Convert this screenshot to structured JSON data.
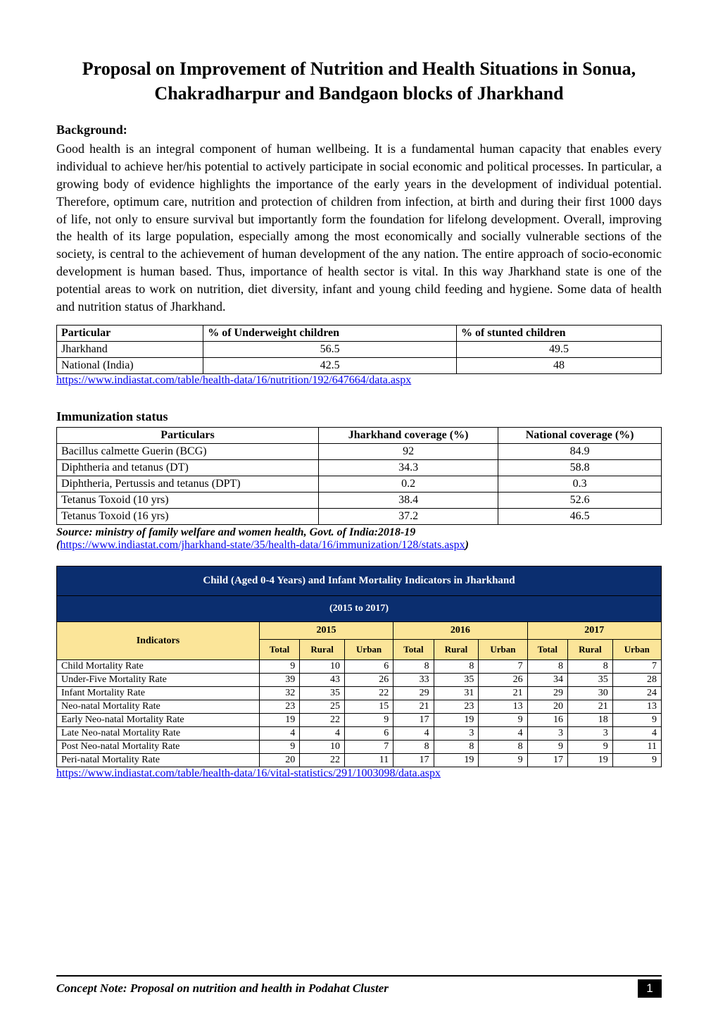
{
  "title": "Proposal on Improvement of Nutrition and Health Situations in Sonua, Chakradharpur and Bandgaon blocks of Jharkhand",
  "background_heading": "Background:",
  "background_text": "Good health is an integral component of human wellbeing.  It is a fundamental human capacity that enables every individual to achieve her/his potential to actively participate in social economic and political processes.  In particular, a growing body of evidence highlights the importance of the early years in the development of individual potential.  Therefore, optimum care, nutrition and protection of children from infection, at birth and during their first 1000 days of life, not only to ensure survival but importantly form the foundation for lifelong development.  Overall, improving the health of its large population, especially among the most economically and socially vulnerable sections of the society, is central to the achievement of human development of the any nation.  The entire approach of socio-economic development is human based.  Thus, importance of health sector is vital.  In this way Jharkhand state is one of the potential areas to work on nutrition, diet diversity, infant and young child feeding and hygiene.  Some data of health and nutrition status of Jharkhand.",
  "nutrition_table": {
    "type": "table",
    "columns": [
      "Particular",
      "% of Underweight children",
      "% of stunted children"
    ],
    "col_align": [
      "left",
      "center",
      "center"
    ],
    "rows": [
      [
        "Jharkhand",
        "56.5",
        "49.5"
      ],
      [
        "National (India)",
        "42.5",
        "48"
      ]
    ],
    "border_color": "#000000",
    "header_bold": true,
    "font_size": 16
  },
  "nutrition_link": "https://www.indiastat.com/table/health-data/16/nutrition/192/647664/data.aspx",
  "immunization_heading": "Immunization status",
  "immunization_table": {
    "type": "table",
    "columns": [
      "Particulars",
      "Jharkhand coverage (%)",
      "National coverage (%)"
    ],
    "col_align": [
      "left",
      "center",
      "center"
    ],
    "rows": [
      [
        "Bacillus calmette Guerin (BCG)",
        "92",
        "84.9"
      ],
      [
        "Diphtheria and tetanus (DT)",
        "34.3",
        "58.8"
      ],
      [
        "Diphtheria, Pertussis and tetanus (DPT)",
        "0.2",
        "0.3"
      ],
      [
        "Tetanus Toxoid (10 yrs)",
        "38.4",
        "52.6"
      ],
      [
        "Tetanus Toxoid (16 yrs)",
        "37.2",
        "46.5"
      ]
    ],
    "border_color": "#000000",
    "header_bold": true,
    "font_size": 16
  },
  "immunization_source": "Source: ministry of family welfare and women health, Govt. of India:2018-19",
  "immunization_link_prefix": "(",
  "immunization_link": "https://www.indiastat.com/jharkhand-state/35/health-data/16/immunization/128/stats.aspx",
  "immunization_link_suffix": ")",
  "mortality_table": {
    "type": "table",
    "title": "Child (Aged 0-4 Years) and Infant Mortality Indicators in Jharkhand",
    "subtitle": "(2015 to 2017)",
    "header_bg": "#0b2e6f",
    "header_fg": "#ffffff",
    "subheader_bg": "#fbe599",
    "subheader_fg": "#000000",
    "cell_bg": "#ffffff",
    "years": [
      "2015",
      "2016",
      "2017"
    ],
    "sub_columns": [
      "Total",
      "Rural",
      "Urban"
    ],
    "indicator_header": "Indicators",
    "rows": [
      {
        "label": "Child Mortality Rate",
        "v": [
          "9",
          "10",
          "6",
          "8",
          "8",
          "7",
          "8",
          "8",
          "7"
        ]
      },
      {
        "label": "Under-Five Mortality Rate",
        "v": [
          "39",
          "43",
          "26",
          "33",
          "35",
          "26",
          "34",
          "35",
          "28"
        ]
      },
      {
        "label": "Infant Mortality Rate",
        "v": [
          "32",
          "35",
          "22",
          "29",
          "31",
          "21",
          "29",
          "30",
          "24"
        ]
      },
      {
        "label": "Neo-natal Mortality Rate",
        "v": [
          "23",
          "25",
          "15",
          "21",
          "23",
          "13",
          "20",
          "21",
          "13"
        ]
      },
      {
        "label": "Early Neo-natal Mortality Rate",
        "v": [
          "19",
          "22",
          "9",
          "17",
          "19",
          "9",
          "16",
          "18",
          "9"
        ]
      },
      {
        "label": "Late Neo-natal Mortality Rate",
        "v": [
          "4",
          "4",
          "6",
          "4",
          "3",
          "4",
          "3",
          "3",
          "4"
        ]
      },
      {
        "label": "Post Neo-natal Mortality Rate",
        "v": [
          "9",
          "10",
          "7",
          "8",
          "8",
          "8",
          "9",
          "9",
          "11"
        ]
      },
      {
        "label": "Peri-natal Mortality Rate",
        "v": [
          "20",
          "22",
          "11",
          "17",
          "19",
          "9",
          "17",
          "19",
          "9"
        ]
      }
    ],
    "font_size": 14
  },
  "mortality_link": "https://www.indiastat.com/table/health-data/16/vital-statistics/291/1003098/data.aspx",
  "footer_text": "Concept Note: Proposal on nutrition and health in Podahat Cluster",
  "page_number": "1",
  "link_color": "#0000ee"
}
